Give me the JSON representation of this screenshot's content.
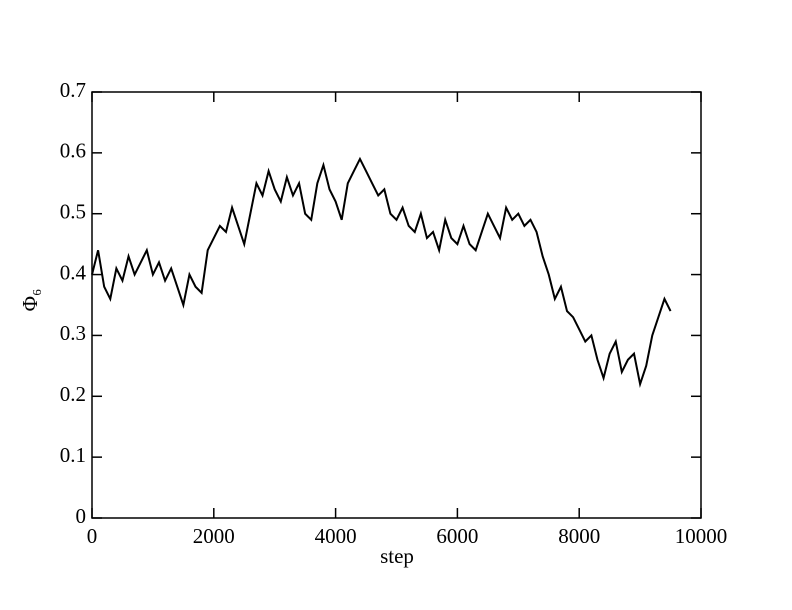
{
  "chart_data": {
    "type": "line",
    "xlabel": "step",
    "ylabel": "Φ₆",
    "x": [
      0,
      100,
      200,
      300,
      400,
      500,
      600,
      700,
      800,
      900,
      1000,
      1100,
      1200,
      1300,
      1400,
      1500,
      1600,
      1700,
      1800,
      1900,
      2000,
      2100,
      2200,
      2300,
      2400,
      2500,
      2600,
      2700,
      2800,
      2900,
      3000,
      3100,
      3200,
      3300,
      3400,
      3500,
      3600,
      3700,
      3800,
      3900,
      4000,
      4100,
      4200,
      4300,
      4400,
      4500,
      4600,
      4700,
      4800,
      4900,
      5000,
      5100,
      5200,
      5300,
      5400,
      5500,
      5600,
      5700,
      5800,
      5900,
      6000,
      6100,
      6200,
      6300,
      6400,
      6500,
      6600,
      6700,
      6800,
      6900,
      7000,
      7100,
      7200,
      7300,
      7400,
      7500,
      7600,
      7700,
      7800,
      7900,
      8000,
      8100,
      8200,
      8300,
      8400,
      8500,
      8600,
      8700,
      8800,
      8900,
      9000,
      9100,
      9200,
      9300,
      9400,
      9500
    ],
    "series": [
      {
        "color": "#000000",
        "values": [
          0.4,
          0.44,
          0.38,
          0.36,
          0.41,
          0.39,
          0.43,
          0.4,
          0.42,
          0.44,
          0.4,
          0.42,
          0.39,
          0.41,
          0.38,
          0.35,
          0.4,
          0.38,
          0.37,
          0.44,
          0.46,
          0.48,
          0.47,
          0.51,
          0.48,
          0.45,
          0.5,
          0.55,
          0.53,
          0.57,
          0.54,
          0.52,
          0.56,
          0.53,
          0.55,
          0.5,
          0.49,
          0.55,
          0.58,
          0.54,
          0.52,
          0.49,
          0.55,
          0.57,
          0.59,
          0.57,
          0.55,
          0.53,
          0.54,
          0.5,
          0.49,
          0.51,
          0.48,
          0.47,
          0.5,
          0.46,
          0.47,
          0.44,
          0.49,
          0.46,
          0.45,
          0.48,
          0.45,
          0.44,
          0.47,
          0.5,
          0.48,
          0.46,
          0.51,
          0.49,
          0.5,
          0.48,
          0.49,
          0.47,
          0.43,
          0.4,
          0.36,
          0.38,
          0.34,
          0.33,
          0.31,
          0.29,
          0.3,
          0.26,
          0.23,
          0.27,
          0.29,
          0.24,
          0.26,
          0.27,
          0.22,
          0.25,
          0.3,
          0.33,
          0.36,
          0.34
        ]
      }
    ],
    "xlim": [
      0,
      10000
    ],
    "xticks": [
      0,
      2000,
      4000,
      6000,
      8000,
      10000
    ],
    "ylim": [
      0,
      0.7
    ],
    "yticks": [
      0,
      0.1,
      0.2,
      0.3,
      0.4,
      0.5,
      0.6,
      0.7
    ]
  }
}
